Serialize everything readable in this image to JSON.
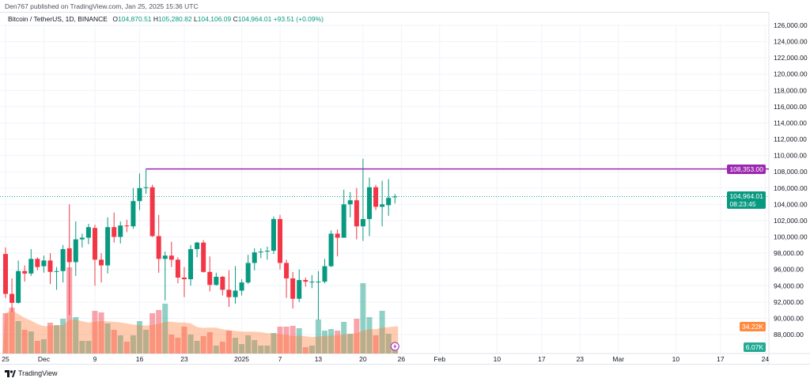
{
  "header": {
    "published": "Den767 published on TradingView.com, Jan 25, 2025 15:36 UTC",
    "symbol": "Bitcoin / TetherUS, 1D, BINANCE",
    "open_label": "O",
    "open": "104,870.51",
    "high_label": "H",
    "high": "105,280.82",
    "low_label": "L",
    "low": "104,106.09",
    "close_label": "C",
    "close": "104,964.01",
    "change": "+93.51 (+0.09%)"
  },
  "colors": {
    "up": "#089981",
    "down": "#f23645",
    "level_line": "#9c27b0",
    "volume_ma": "#ff8a3d",
    "grid": "#f0f3fa"
  },
  "price_axis": {
    "ticks": [
      126000,
      124000,
      122000,
      120000,
      118000,
      116000,
      114000,
      112000,
      110000,
      108000,
      106000,
      104000,
      102000,
      100000,
      98000,
      96000,
      94000,
      92000,
      90000,
      88000
    ],
    "level_label": "108,353.00",
    "level_value": 108353,
    "last_price_label": "104,964.01",
    "countdown": "08:23:45",
    "last_price": 104964.01,
    "volume_ma_label": "34.22K",
    "volume_label": "6.07K"
  },
  "time_axis": [
    {
      "label": "25",
      "date": "2024-11-25"
    },
    {
      "label": "Dec",
      "date": "2024-12-01"
    },
    {
      "label": "9",
      "date": "2024-12-09"
    },
    {
      "label": "16",
      "date": "2024-12-16"
    },
    {
      "label": "23",
      "date": "2024-12-23"
    },
    {
      "label": "2025",
      "date": "2025-01-01"
    },
    {
      "label": "7",
      "date": "2025-01-07"
    },
    {
      "label": "13",
      "date": "2025-01-13"
    },
    {
      "label": "20",
      "date": "2025-01-20"
    },
    {
      "label": "26",
      "date": "2025-01-26"
    },
    {
      "label": "Feb",
      "date": "2025-02-01"
    },
    {
      "label": "10",
      "date": "2025-02-10"
    },
    {
      "label": "17",
      "date": "2025-02-17"
    },
    {
      "label": "23",
      "date": "2025-02-23"
    },
    {
      "label": "Mar",
      "date": "2025-03-01"
    },
    {
      "label": "10",
      "date": "2025-03-10"
    },
    {
      "label": "17",
      "date": "2025-03-17"
    },
    {
      "label": "24",
      "date": "2025-03-24"
    }
  ],
  "chart_data": {
    "type": "candlestick",
    "start_date": "2024-11-25",
    "interval": "1D",
    "ohlc": [
      [
        97900,
        98700,
        92500,
        93000
      ],
      [
        93000,
        94900,
        90800,
        91900
      ],
      [
        91900,
        97100,
        91800,
        95800
      ],
      [
        95800,
        96500,
        94500,
        95500
      ],
      [
        95500,
        98500,
        95200,
        97300
      ],
      [
        97300,
        97500,
        95900,
        96300
      ],
      [
        96400,
        97700,
        95600,
        97100
      ],
      [
        97100,
        98000,
        94200,
        95700
      ],
      [
        95700,
        96300,
        93500,
        95800
      ],
      [
        95800,
        99000,
        94400,
        98500
      ],
      [
        98600,
        104000,
        90400,
        96900
      ],
      [
        96900,
        101900,
        95200,
        99700
      ],
      [
        99700,
        100400,
        98700,
        99900
      ],
      [
        99900,
        101600,
        99100,
        101200
      ],
      [
        101100,
        101500,
        94000,
        97200
      ],
      [
        97200,
        98000,
        94400,
        96500
      ],
      [
        96500,
        102400,
        95500,
        101200
      ],
      [
        101200,
        103000,
        99300,
        100000
      ],
      [
        100000,
        101900,
        99200,
        101400
      ],
      [
        101400,
        102100,
        100600,
        101300
      ],
      [
        101300,
        106000,
        101000,
        104400
      ],
      [
        104400,
        107800,
        103300,
        106000
      ],
      [
        106000,
        108353,
        105300,
        106100
      ],
      [
        106100,
        106400,
        100000,
        100100
      ],
      [
        100100,
        102700,
        95600,
        97300
      ],
      [
        97300,
        98200,
        92200,
        97700
      ],
      [
        97700,
        99400,
        96300,
        97200
      ],
      [
        97200,
        97500,
        94300,
        95000
      ],
      [
        95000,
        96300,
        92600,
        94800
      ],
      [
        94800,
        99000,
        94000,
        98500
      ],
      [
        98500,
        99400,
        97500,
        99300
      ],
      [
        99300,
        99600,
        95600,
        95700
      ],
      [
        95700,
        97600,
        93300,
        94100
      ],
      [
        94100,
        95600,
        94000,
        95100
      ],
      [
        95100,
        95200,
        92800,
        93500
      ],
      [
        93500,
        95900,
        91400,
        92600
      ],
      [
        92600,
        96400,
        91800,
        93400
      ],
      [
        93400,
        94800,
        92800,
        94400
      ],
      [
        94400,
        97800,
        94200,
        96800
      ],
      [
        96800,
        98600,
        95900,
        98100
      ],
      [
        98100,
        98600,
        97400,
        98200
      ],
      [
        98200,
        98800,
        97200,
        98300
      ],
      [
        98300,
        102500,
        97900,
        102200
      ],
      [
        102200,
        102700,
        96000,
        96800
      ],
      [
        96800,
        97200,
        92500,
        94900
      ],
      [
        94900,
        95700,
        91200,
        92400
      ],
      [
        92400,
        96000,
        92000,
        94700
      ],
      [
        94700,
        95000,
        93900,
        94500
      ],
      [
        94500,
        95300,
        93700,
        94500
      ],
      [
        94500,
        95800,
        89800,
        94500
      ],
      [
        94500,
        97300,
        94300,
        96400
      ],
      [
        96400,
        100800,
        96300,
        100400
      ],
      [
        100400,
        100900,
        97600,
        99900
      ],
      [
        99900,
        105800,
        99900,
        104000
      ],
      [
        104000,
        105500,
        102400,
        104500
      ],
      [
        104500,
        106000,
        99700,
        101300
      ],
      [
        101300,
        109600,
        99500,
        102200
      ],
      [
        102200,
        107300,
        100100,
        106100
      ],
      [
        106100,
        106400,
        103300,
        103700
      ],
      [
        103700,
        106900,
        101300,
        104000
      ],
      [
        103900,
        107100,
        102600,
        104800
      ],
      [
        104870.51,
        105280.82,
        104106.09,
        104964.01
      ]
    ],
    "volume_k": [
      51,
      58,
      41,
      30,
      28,
      16,
      18,
      39,
      36,
      44,
      109,
      46,
      16,
      16,
      54,
      52,
      38,
      30,
      23,
      15,
      23,
      41,
      30,
      51,
      55,
      63,
      24,
      20,
      34,
      24,
      16,
      22,
      27,
      10,
      15,
      29,
      20,
      12,
      23,
      17,
      10,
      10,
      26,
      34,
      34,
      35,
      32,
      8,
      10,
      43,
      29,
      31,
      29,
      40,
      25,
      44,
      89,
      46,
      23,
      54,
      25,
      6.07
    ],
    "volume_ma_k": 34.22,
    "horizontal_level": 108353,
    "ylim": [
      87000,
      127000
    ]
  },
  "footer": {
    "brand": "TradingView"
  }
}
